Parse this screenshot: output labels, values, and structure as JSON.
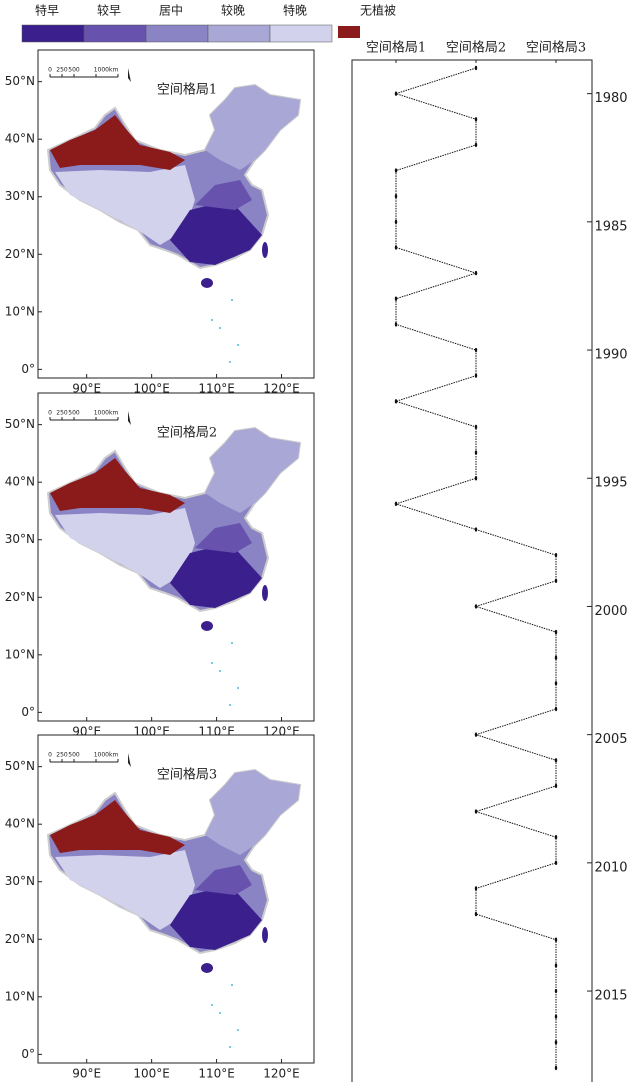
{
  "legend": {
    "items": [
      {
        "label": "特早",
        "color": "#3b1f8c"
      },
      {
        "label": "较早",
        "color": "#6752ae"
      },
      {
        "label": "居中",
        "color": "#8a84c4"
      },
      {
        "label": "较晚",
        "color": "#a9a7d5"
      },
      {
        "label": "特晚",
        "color": "#d2d2ec"
      }
    ],
    "no_vegetation": {
      "label": "无植被",
      "color": "#8b1a1a"
    }
  },
  "maps": {
    "xlim": [
      82.5,
      125
    ],
    "ylim": [
      -1.5,
      55.5
    ],
    "xticks": [
      {
        "value": 90,
        "label": "90°E"
      },
      {
        "value": 100,
        "label": "100°E"
      },
      {
        "value": 110,
        "label": "110°E"
      },
      {
        "value": 120,
        "label": "120°E"
      }
    ],
    "yticks": [
      {
        "value": 0,
        "label": "0°"
      },
      {
        "value": 10,
        "label": "10°N"
      },
      {
        "value": 20,
        "label": "20°N"
      },
      {
        "value": 30,
        "label": "30°N"
      },
      {
        "value": 40,
        "label": "40°N"
      },
      {
        "value": 50,
        "label": "50°N"
      }
    ],
    "scale_labels": [
      "0",
      "250",
      "500",
      "1000km"
    ],
    "panels": [
      {
        "title": "空间格局1"
      },
      {
        "title": "空间格局2"
      },
      {
        "title": "空间格局3"
      }
    ]
  },
  "chart_data": {
    "type": "line",
    "x": [
      1979,
      1980,
      1981,
      1982,
      1983,
      1984,
      1985,
      1986,
      1987,
      1988,
      1989,
      1990,
      1991,
      1992,
      1993,
      1994,
      1995,
      1996,
      1997,
      1998,
      1999,
      2000,
      2001,
      2002,
      2003,
      2004,
      2005,
      2006,
      2007,
      2008,
      2009,
      2010,
      2011,
      2012,
      2013,
      2014,
      2015,
      2016,
      2017,
      2018
    ],
    "values": [
      2,
      1,
      2,
      2,
      1,
      1,
      1,
      1,
      2,
      1,
      1,
      2,
      2,
      1,
      2,
      2,
      2,
      1,
      2,
      3,
      3,
      2,
      3,
      3,
      3,
      3,
      2,
      3,
      3,
      2,
      3,
      3,
      2,
      2,
      3,
      3,
      3,
      3,
      3,
      3
    ],
    "xlim": [
      1978.7,
      2018.55
    ],
    "xticks": [
      1980,
      1985,
      1990,
      1995,
      2000,
      2005,
      2010,
      2015
    ],
    "ylim": [
      0.45,
      3.45
    ],
    "yticks": [
      {
        "value": 1,
        "label": "空间格局1"
      },
      {
        "value": 2,
        "label": "空间格局2"
      },
      {
        "value": 3,
        "label": "空间格局3"
      }
    ],
    "color": "#111111"
  }
}
